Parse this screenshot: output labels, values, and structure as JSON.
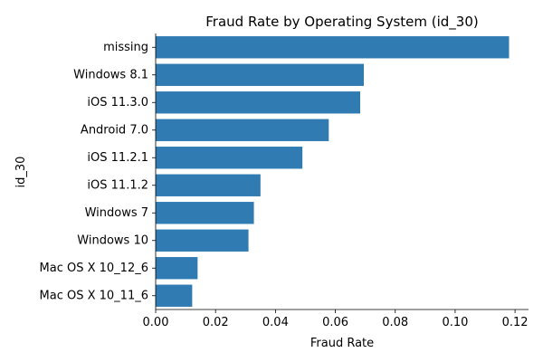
{
  "colors": {
    "bar": "#2f7bb2",
    "axis": "#000000",
    "background": "#ffffff"
  },
  "chart_data": {
    "type": "bar",
    "orientation": "horizontal",
    "title": "Fraud Rate by Operating System (id_30)",
    "xlabel": "Fraud Rate",
    "ylabel": "id_30",
    "xlim": [
      0,
      0.1245
    ],
    "xticks": [
      "0.00",
      "0.02",
      "0.04",
      "0.06",
      "0.08",
      "0.10",
      "0.12"
    ],
    "grid": false,
    "categories": [
      "missing",
      "Windows 8.1",
      "iOS 11.3.0",
      "Android 7.0",
      "iOS 11.2.1",
      "iOS 11.1.2",
      "Windows 7",
      "Windows 10",
      "Mac OS X 10_12_6",
      "Mac OS X 10_11_6"
    ],
    "values": [
      0.118,
      0.0695,
      0.0683,
      0.0578,
      0.049,
      0.035,
      0.0328,
      0.031,
      0.014,
      0.0122
    ]
  }
}
